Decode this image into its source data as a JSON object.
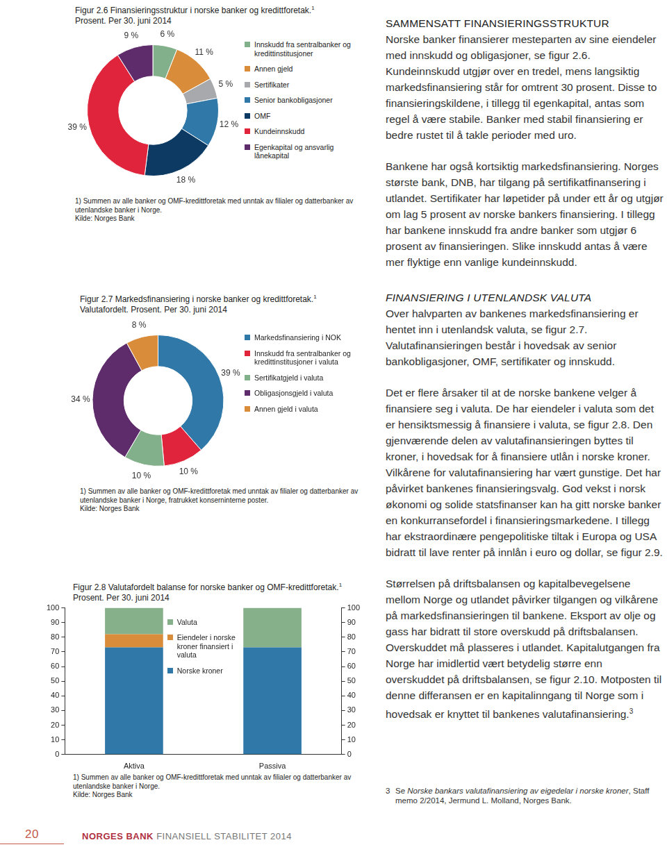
{
  "chart_data": [
    {
      "type": "doughnut",
      "title": "Figur 2.6 Finansieringsstruktur i norske banker og kredittforetak.",
      "title_note": "1",
      "subtitle": "Prosent. Per 30. juni 2014",
      "categories": [
        "Innskudd fra sentralbanker og kredittinstitusjoner",
        "Annen gjeld",
        "Sertifikater",
        "Senior bankobligasjoner",
        "OMF",
        "Kundeinnskudd",
        "Egenkapital og ansvarlig lånekapital"
      ],
      "values": [
        6,
        11,
        5,
        12,
        18,
        39,
        9
      ],
      "value_labels": [
        "6 %",
        "11 %",
        "5 %",
        "12 %",
        "18 %",
        "39 %",
        "9 %"
      ],
      "colors": [
        "#82b08a",
        "#d98c3a",
        "#a7a9ac",
        "#2f78a8",
        "#0c3a63",
        "#e0243c",
        "#5e2c6a"
      ],
      "data_labels": true,
      "legend": "right",
      "footnote": "1) Summen av alle banker og OMF-kredittforetak med unntak av filialer og datterbanker av utenlandske banker i Norge.",
      "source": "Kilde: Norges Bank"
    },
    {
      "type": "doughnut",
      "title": "Figur 2.7 Markedsfinansiering i norske banker og kredittforetak.",
      "title_note": "1",
      "subtitle": "Valutafordelt. Prosent. Per 30. juni 2014",
      "categories": [
        "Markedsfinansiering i NOK",
        "Innskudd fra sentralbanker og kredittinstitusjoner i valuta",
        "Sertifikatgjeld i valuta",
        "Obligasjonsgjeld i valuta",
        "Annen gjeld i valuta"
      ],
      "values": [
        39,
        10,
        10,
        34,
        8
      ],
      "value_labels": [
        "39 %",
        "10 %",
        "10 %",
        "34 %",
        "8 %"
      ],
      "colors": [
        "#2f78a8",
        "#e0243c",
        "#82b08a",
        "#5e2c6a",
        "#d98c3a"
      ],
      "data_labels": true,
      "legend": "right",
      "footnote": "1) Summen av alle banker og OMF-kredittforetak med unntak av filialer og datterbanker av utenlandske banker i Norge, fratrukket konserninterne poster.",
      "source": "Kilde: Norges Bank"
    },
    {
      "type": "bar",
      "title": "Figur 2.8 Valutafordelt balanse for norske banker og OMF-kredittforetak.",
      "title_note": "1",
      "subtitle": "Prosent. Per 30. juni 2014",
      "categories": [
        "Aktiva",
        "Passiva"
      ],
      "series": [
        {
          "name": "Norske kroner",
          "color": "#2f78a8",
          "values": [
            73,
            73
          ]
        },
        {
          "name": "Eiendeler i norske kroner finansiert i valuta",
          "color": "#d98c3a",
          "values": [
            9,
            0
          ]
        },
        {
          "name": "Valuta",
          "color": "#86b08a",
          "values": [
            18,
            27
          ]
        }
      ],
      "stacked": true,
      "ylim": [
        0,
        100
      ],
      "yticks": [
        0,
        10,
        20,
        30,
        40,
        50,
        60,
        70,
        80,
        90,
        100
      ],
      "y2lim": [
        0,
        100
      ],
      "y2ticks": [
        0,
        10,
        20,
        30,
        40,
        50,
        60,
        70,
        80,
        90,
        100
      ],
      "grid": false,
      "legend": "upper center",
      "footnote": "1) Summen av alle banker og OMF-kredittforetak med unntak av filialer og datterbanker av utenlandske banker i Norge.",
      "source": "Kilde: Norges Bank"
    }
  ],
  "text": {
    "sections": [
      {
        "heading": "SAMMENSATT FINANSIERINGSSTRUKTUR",
        "heading_style": "normal",
        "paragraphs": [
          {
            "text": "Norske banker finansierer mesteparten av sine eiendeler med innskudd og obligasjoner, se figur 2.6. Kundeinnskudd utgjør over en tredel, mens langsiktig markedsfinansiering står for omtrent 30 prosent. Disse to finansieringskildene, i tillegg til egenkapital, antas som regel å være stabile. Banker med stabil finansiering er bedre rustet til å takle perioder med uro."
          },
          {
            "text": "Bankene har også kortsiktig markedsfinansiering. Norges største bank, DNB, har tilgang på sertifikatfinansering i utlandet. Sertifikater har løpetider på under ett år og utgjør om lag 5 prosent av norske bankers finansiering. I tillegg har bankene innskudd fra andre banker som utgjør 6 prosent av finansieringen. Slike innskudd antas å være mer flyktige enn vanlige kundeinnskudd."
          }
        ]
      },
      {
        "heading": "FINANSIERING I UTENLANDSK VALUTA",
        "heading_style": "italic",
        "paragraphs": [
          {
            "text": "Over halvparten av bankenes markedsfinansiering er hentet inn i utenlandsk valuta, se figur 2.7. Valutafinansieringen består i hovedsak av senior bankobligasjoner, OMF, sertifikater og innskudd."
          },
          {
            "text": "Det er flere årsaker til at de norske bankene velger å finansiere seg i valuta. De har eiendeler i valuta som det er hensiktsmessig å finansiere i valuta, se figur 2.8. Den gjenværende delen av valutafinansieringen byttes til kroner, i hovedsak for å finansiere utlån i norske kroner. Vilkårene for valutafinansiering har vært gunstige. Det har påvirket bankenes finansieringsvalg. God vekst i norsk økonomi og solide statsfinanser kan ha gitt norske banker en konkurransefordel i finansieringsmarkedene. I tillegg har ekstraordinære pengepolitiske tiltak i Europa og USA bidratt til lave renter på innlån i euro og dollar, se figur 2.9."
          },
          {
            "text": "Størrelsen på driftsbalansen og kapitalbevegelsene mellom Norge og utlandet påvirker tilgangen og vilkårene på markedsfinansieringen til bankene. Eksport av olje og gass har bidratt til store overskudd på driftsbalansen. Overskuddet må plasseres i utlandet. Kapitalutgangen fra Norge har imidlertid vært betydelig større enn overskuddet på driftsbalansen, se figur 2.10. Motposten til denne differansen er en kapitalinngang til Norge som i hovedsak er knyttet til bankenes valutafinansiering.",
            "note": "3"
          }
        ]
      }
    ],
    "footnote": {
      "number": "3",
      "prefix": "Se ",
      "title": "Norske bankars valutafinansiering av eigedelar i norske kroner",
      "suffix": ", Staff memo 2/2014, Jermund L. Molland, Norges Bank."
    }
  },
  "footer": {
    "page": "20",
    "publisher": "NORGES BANK",
    "publication": "FINANSIELL STABILITET",
    "year": "2014"
  }
}
